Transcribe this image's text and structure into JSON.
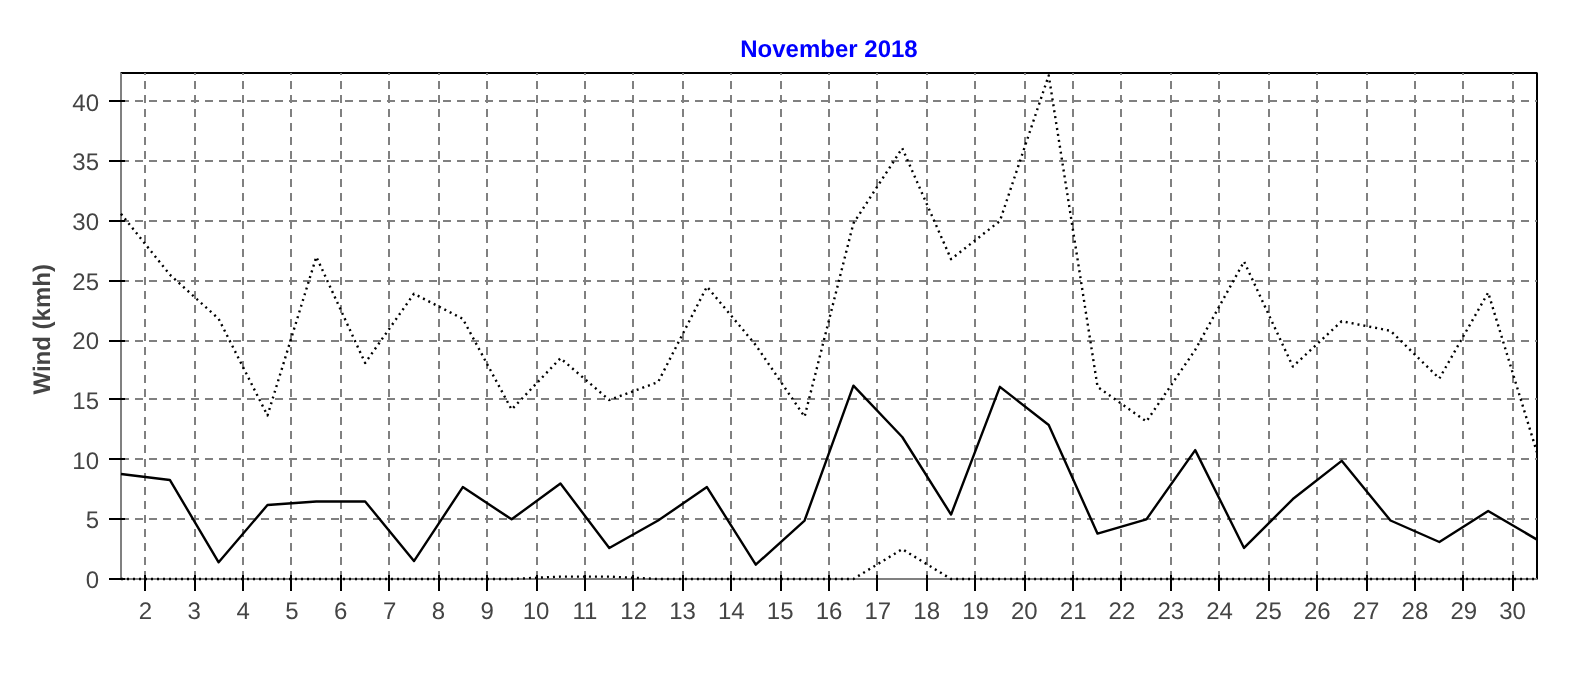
{
  "chart_data": {
    "type": "line",
    "title": "November 2018",
    "ylabel": "Wind  (kmh)",
    "x": [
      1.5,
      2.5,
      3.5,
      4.5,
      5.5,
      6.5,
      7.5,
      8.5,
      9.5,
      10.5,
      11.5,
      12.5,
      13.5,
      14.5,
      15.5,
      16.5,
      17.5,
      18.5,
      19.5,
      20.5,
      21.5,
      22.5,
      23.5,
      24.5,
      25.5,
      26.5,
      27.5,
      28.5,
      29.5,
      30.5
    ],
    "series": [
      {
        "color": "#000000",
        "line_style": "dotted",
        "values": [
          30.6,
          25.5,
          21.8,
          13.7,
          27.0,
          18.1,
          23.9,
          21.8,
          14.2,
          18.5,
          15.0,
          16.5,
          24.5,
          19.6,
          13.6,
          29.8,
          36.1,
          26.8,
          30.0,
          42.2,
          16.1,
          13.2,
          19.2,
          26.6,
          17.8,
          21.6,
          20.8,
          16.8,
          24.0,
          10.6
        ]
      },
      {
        "color": "#000000",
        "line_style": "solid",
        "values": [
          8.8,
          8.3,
          1.4,
          6.2,
          6.5,
          6.5,
          1.5,
          7.7,
          5.0,
          8.0,
          2.6,
          4.9,
          7.7,
          1.2,
          4.9,
          16.2,
          11.9,
          5.4,
          16.1,
          12.9,
          3.8,
          5.0,
          10.8,
          2.6,
          6.7,
          9.9,
          4.9,
          3.1,
          5.7,
          3.3
        ]
      },
      {
        "color": "#000000",
        "line_style": "dotted",
        "values": [
          0,
          0,
          0,
          0,
          0,
          0,
          0,
          0,
          0,
          0.2,
          0.2,
          0,
          0,
          0,
          0,
          0,
          2.5,
          0,
          0,
          0,
          0,
          0,
          0,
          0,
          0,
          0,
          0,
          0,
          0,
          0
        ]
      }
    ],
    "xlim": [
      1.5,
      30.5
    ],
    "xticks": [
      2,
      3,
      4,
      5,
      6,
      7,
      8,
      9,
      10,
      11,
      12,
      13,
      14,
      15,
      16,
      17,
      18,
      19,
      20,
      21,
      22,
      23,
      24,
      25,
      26,
      27,
      28,
      29,
      30
    ],
    "ylim": [
      0,
      42.4
    ],
    "yticks": [
      0,
      5,
      10,
      15,
      20,
      25,
      30,
      35,
      40
    ],
    "grid": true,
    "marker": "none"
  }
}
